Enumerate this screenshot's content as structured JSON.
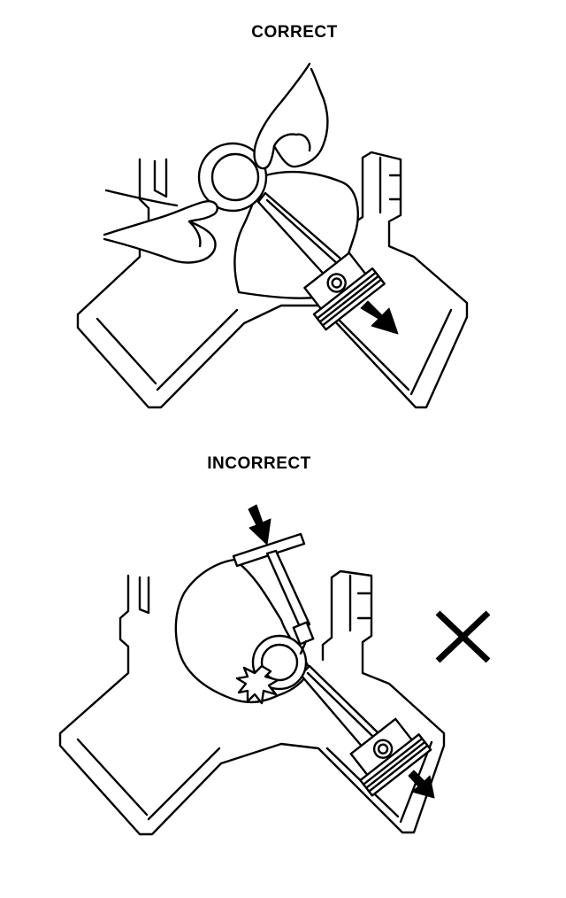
{
  "labels": {
    "correct": "CORRECT",
    "incorrect": "INCORRECT"
  },
  "colors": {
    "ink": "#000000",
    "background": "#ffffff"
  },
  "icons": {
    "wrong_mark": "x-mark-icon",
    "direction": "arrow-icon",
    "impact": "impact-burst-icon"
  }
}
